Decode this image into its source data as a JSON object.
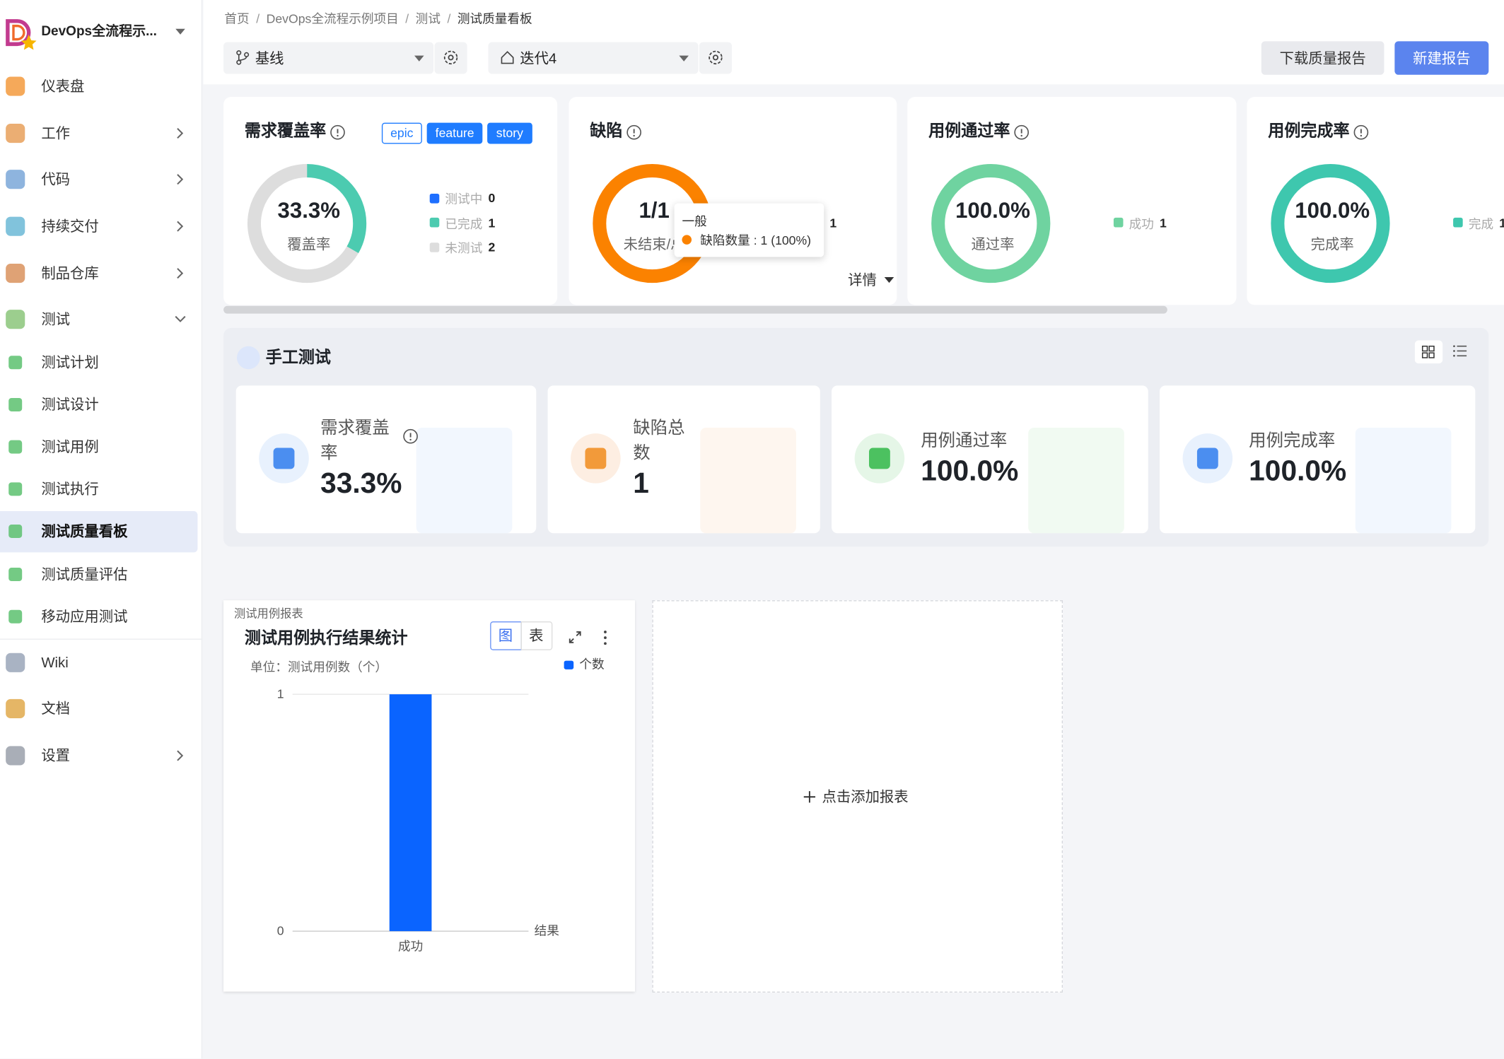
{
  "sidebar": {
    "project": "DevOps全流程示...",
    "items": [
      "仪表盘",
      "工作",
      "代码",
      "持续交付",
      "制品仓库",
      "测试",
      "测试计划",
      "测试设计",
      "测试用例",
      "测试执行",
      "测试质量看板",
      "测试质量评估",
      "移动应用测试",
      "Wiki",
      "文档",
      "设置"
    ]
  },
  "breadcrumb": [
    "首页",
    "DevOps全流程示例项目",
    "测试",
    "测试质量看板"
  ],
  "breadcrumb_separator": "/",
  "toolbar": {
    "baseline": "基线",
    "iteration": "迭代4",
    "download": "下载质量报告",
    "create": "新建报告"
  },
  "summary_cards": [
    {
      "title": "需求覆盖率",
      "tags": [
        "epic",
        "feature",
        "story"
      ],
      "center_value": "33.3%",
      "center_label": "覆盖率",
      "legend": [
        {
          "name": "测试中",
          "value": 0,
          "color": "#1e6fff"
        },
        {
          "name": "已完成",
          "value": 1,
          "color": "#4ccbb0"
        },
        {
          "name": "未测试",
          "value": 2,
          "color": "#dddddd"
        }
      ]
    },
    {
      "title": "缺陷",
      "center_value": "1/1",
      "center_label": "未结束/总",
      "legend": [
        {
          "value": 1,
          "color": "#fb8200"
        }
      ],
      "tooltip": {
        "title": "一般",
        "text": "缺陷数量 : 1 (100%)"
      },
      "details": "详情"
    },
    {
      "title": "用例通过率",
      "center_value": "100.0%",
      "center_label": "通过率",
      "legend": [
        {
          "name": "成功",
          "value": 1,
          "color": "#6fd3a0"
        }
      ]
    },
    {
      "title": "用例完成率",
      "center_value": "100.0%",
      "center_label": "完成率",
      "legend": [
        {
          "name": "完成",
          "value": 1,
          "color": "#3ec7ae"
        }
      ]
    }
  ],
  "manual_test": {
    "title": "手工测试",
    "cards": [
      {
        "label": "需求覆盖率",
        "value": "33.3%"
      },
      {
        "label": "缺陷总数",
        "value": "1"
      },
      {
        "label": "用例通过率",
        "value": "100.0%"
      },
      {
        "label": "用例完成率",
        "value": "100.0%"
      }
    ]
  },
  "chart_data": {
    "type": "bar",
    "report_label": "测试用例报表",
    "title": "测试用例执行结果统计",
    "view_toggle": [
      "图",
      "表"
    ],
    "unit": "单位：测试用例数（个）",
    "x_label": "结果",
    "categories": [
      "成功"
    ],
    "series": [
      {
        "name": "个数",
        "color": "#0a64ff",
        "values": [
          1
        ]
      }
    ],
    "ylim": [
      0,
      1
    ],
    "yticks": [
      0,
      1
    ]
  },
  "add_report": "点击添加报表"
}
